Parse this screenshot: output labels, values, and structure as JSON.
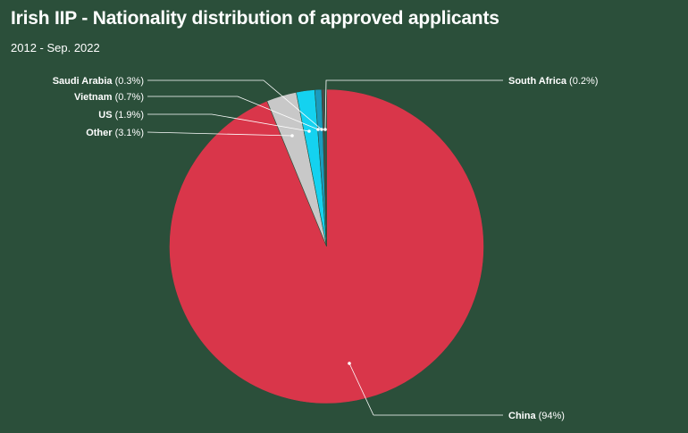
{
  "title": "Irish IIP - Nationality distribution of approved applicants",
  "subtitle": "2012 - Sep. 2022",
  "chart_data": {
    "type": "pie",
    "title": "Irish IIP - Nationality distribution of approved applicants",
    "subtitle": "2012 - Sep. 2022",
    "slices": [
      {
        "name": "China",
        "value": 94,
        "label": "(94%)",
        "color": "#d9364a"
      },
      {
        "name": "Other",
        "value": 3.1,
        "label": "(3.1%)",
        "color": "#c8c8c8"
      },
      {
        "name": "US",
        "value": 1.9,
        "label": "(1.9%)",
        "color": "#14d2f0"
      },
      {
        "name": "Vietnam",
        "value": 0.7,
        "label": "(0.7%)",
        "color": "#1a9bbf"
      },
      {
        "name": "Saudi Arabia",
        "value": 0.3,
        "label": "(0.3%)",
        "color": "#4a4a4a"
      },
      {
        "name": "South Africa",
        "value": 0.2,
        "label": "(0.2%)",
        "color": "#1d6b5a"
      }
    ],
    "legend": "none"
  }
}
